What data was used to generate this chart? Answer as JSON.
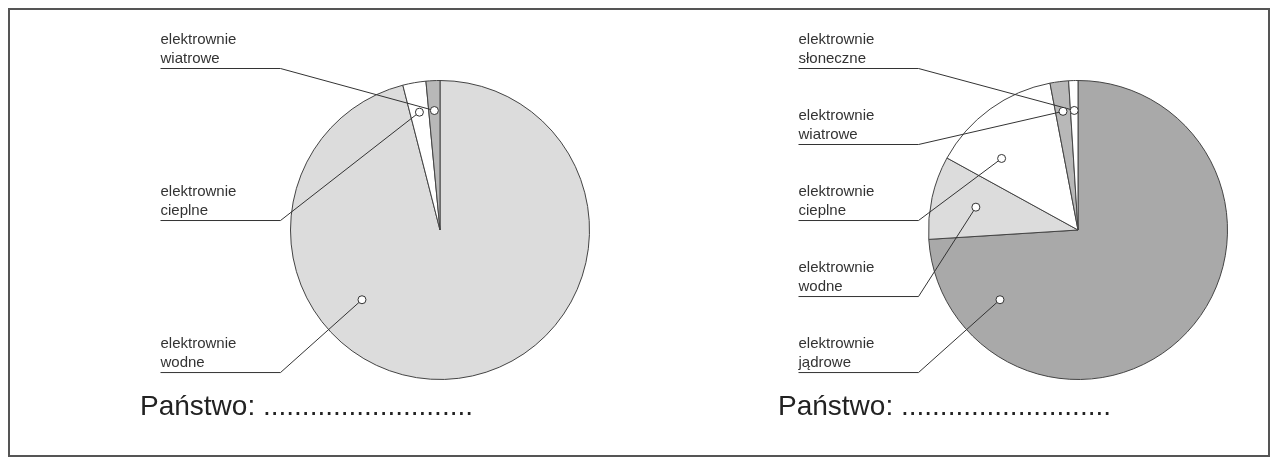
{
  "chart_data": [
    {
      "type": "pie",
      "categories": [
        "elektrownie wodne",
        "elektrownie cieplne",
        "elektrownie wiatrowe"
      ],
      "values": [
        96,
        2.5,
        1.5
      ],
      "colors": [
        "#dcdcdc",
        "#ffffff",
        "#b8b8b8"
      ],
      "annotations": [
        "Państwo: ..........................."
      ]
    },
    {
      "type": "pie",
      "categories": [
        "elektrownie jądrowe",
        "elektrownie wodne",
        "elektrownie cieplne",
        "elektrownie wiatrowe",
        "elektrownie słoneczne"
      ],
      "values": [
        74,
        9,
        14,
        2,
        1
      ],
      "colors": [
        "#a9a9a9",
        "#dcdcdc",
        "#ffffff",
        "#b8b8b8",
        "#ffffff"
      ],
      "annotations": [
        "Państwo: ..........................."
      ]
    }
  ]
}
